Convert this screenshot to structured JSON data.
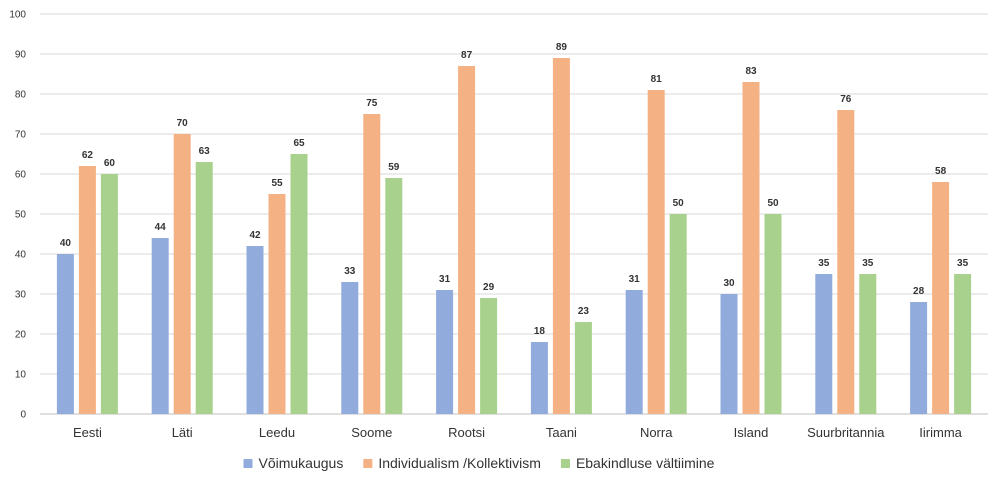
{
  "chart_data": {
    "type": "bar",
    "categories": [
      "Eesti",
      "Läti",
      "Leedu",
      "Soome",
      "Rootsi",
      "Taani",
      "Norra",
      "Island",
      "Suurbritannia",
      "Iirimma"
    ],
    "series": [
      {
        "name": "Võimukaugus",
        "color": "#92ABDD",
        "values": [
          40,
          44,
          42,
          33,
          31,
          18,
          31,
          30,
          35,
          28
        ]
      },
      {
        "name": "Individualism /Kollektivism",
        "color": "#F4B183",
        "values": [
          62,
          70,
          55,
          75,
          87,
          89,
          81,
          83,
          76,
          58
        ]
      },
      {
        "name": "Ebakindluse vältiimine",
        "color": "#A9D18E",
        "values": [
          60,
          63,
          65,
          59,
          29,
          23,
          50,
          50,
          35,
          35
        ]
      }
    ],
    "ylim": [
      0,
      100
    ],
    "yticks": [
      0,
      10,
      20,
      30,
      40,
      50,
      60,
      70,
      80,
      90,
      100
    ],
    "grid": true,
    "legend_position": "bottom",
    "title": "",
    "xlabel": "",
    "ylabel": ""
  }
}
